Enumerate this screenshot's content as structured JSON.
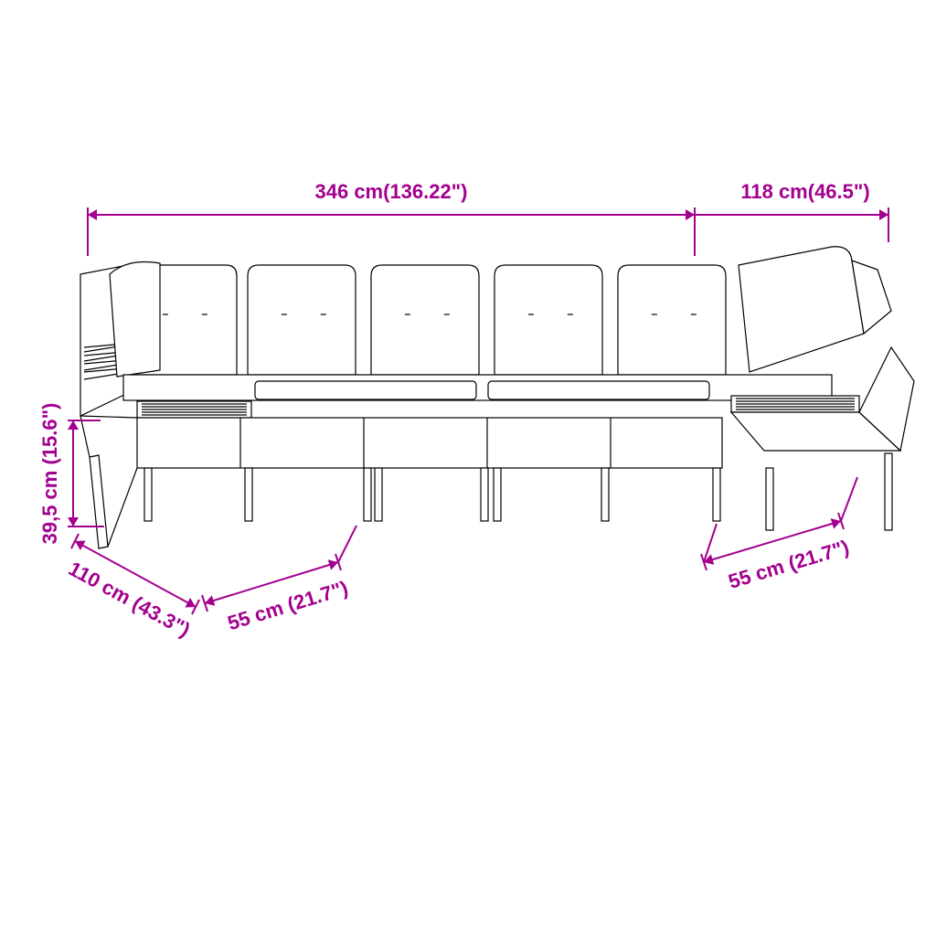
{
  "colors": {
    "accent": "#a3008f",
    "line": "#000000",
    "background": "#ffffff"
  },
  "dimensions": {
    "width_top": "346 cm(136.22\")",
    "depth_top": "118 cm(46.5\")",
    "height": "39,5 cm (15.6\")",
    "depth_left": "110 cm (43.3\")",
    "seat_left": "55 cm (21.7\")",
    "seat_right": "55 cm (21.7\")"
  },
  "style": {
    "label_fontsize": 22,
    "label_fontweight": "bold",
    "dim_stroke_width": 2,
    "sofa_stroke_width": 1.2,
    "arrow_size": 10
  }
}
